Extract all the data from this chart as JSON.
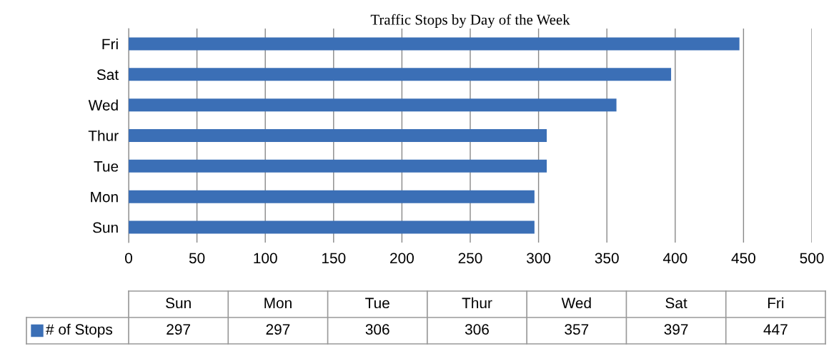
{
  "chart_data": [
    {
      "type": "bar",
      "orientation": "horizontal",
      "title": "Traffic Stops by Day of the Week",
      "categories": [
        "Fri",
        "Sat",
        "Wed",
        "Thur",
        "Tue",
        "Mon",
        "Sun"
      ],
      "values": [
        447,
        397,
        357,
        306,
        306,
        297,
        297
      ],
      "color": "#3b6fb6",
      "xlim": [
        0,
        500
      ],
      "xticks": [
        0,
        50,
        100,
        150,
        200,
        250,
        300,
        350,
        400,
        450,
        500
      ],
      "grid": "x"
    },
    {
      "type": "other",
      "data_labels": true,
      "legend": "left",
      "categories": [
        "Sun",
        "Mon",
        "Tue",
        "Thur",
        "Wed",
        "Sat",
        "Fri"
      ],
      "series": [
        {
          "name": "# of Stops",
          "color": "#3b6fb6",
          "values": [
            297,
            297,
            306,
            306,
            357,
            397,
            447
          ]
        }
      ]
    }
  ]
}
